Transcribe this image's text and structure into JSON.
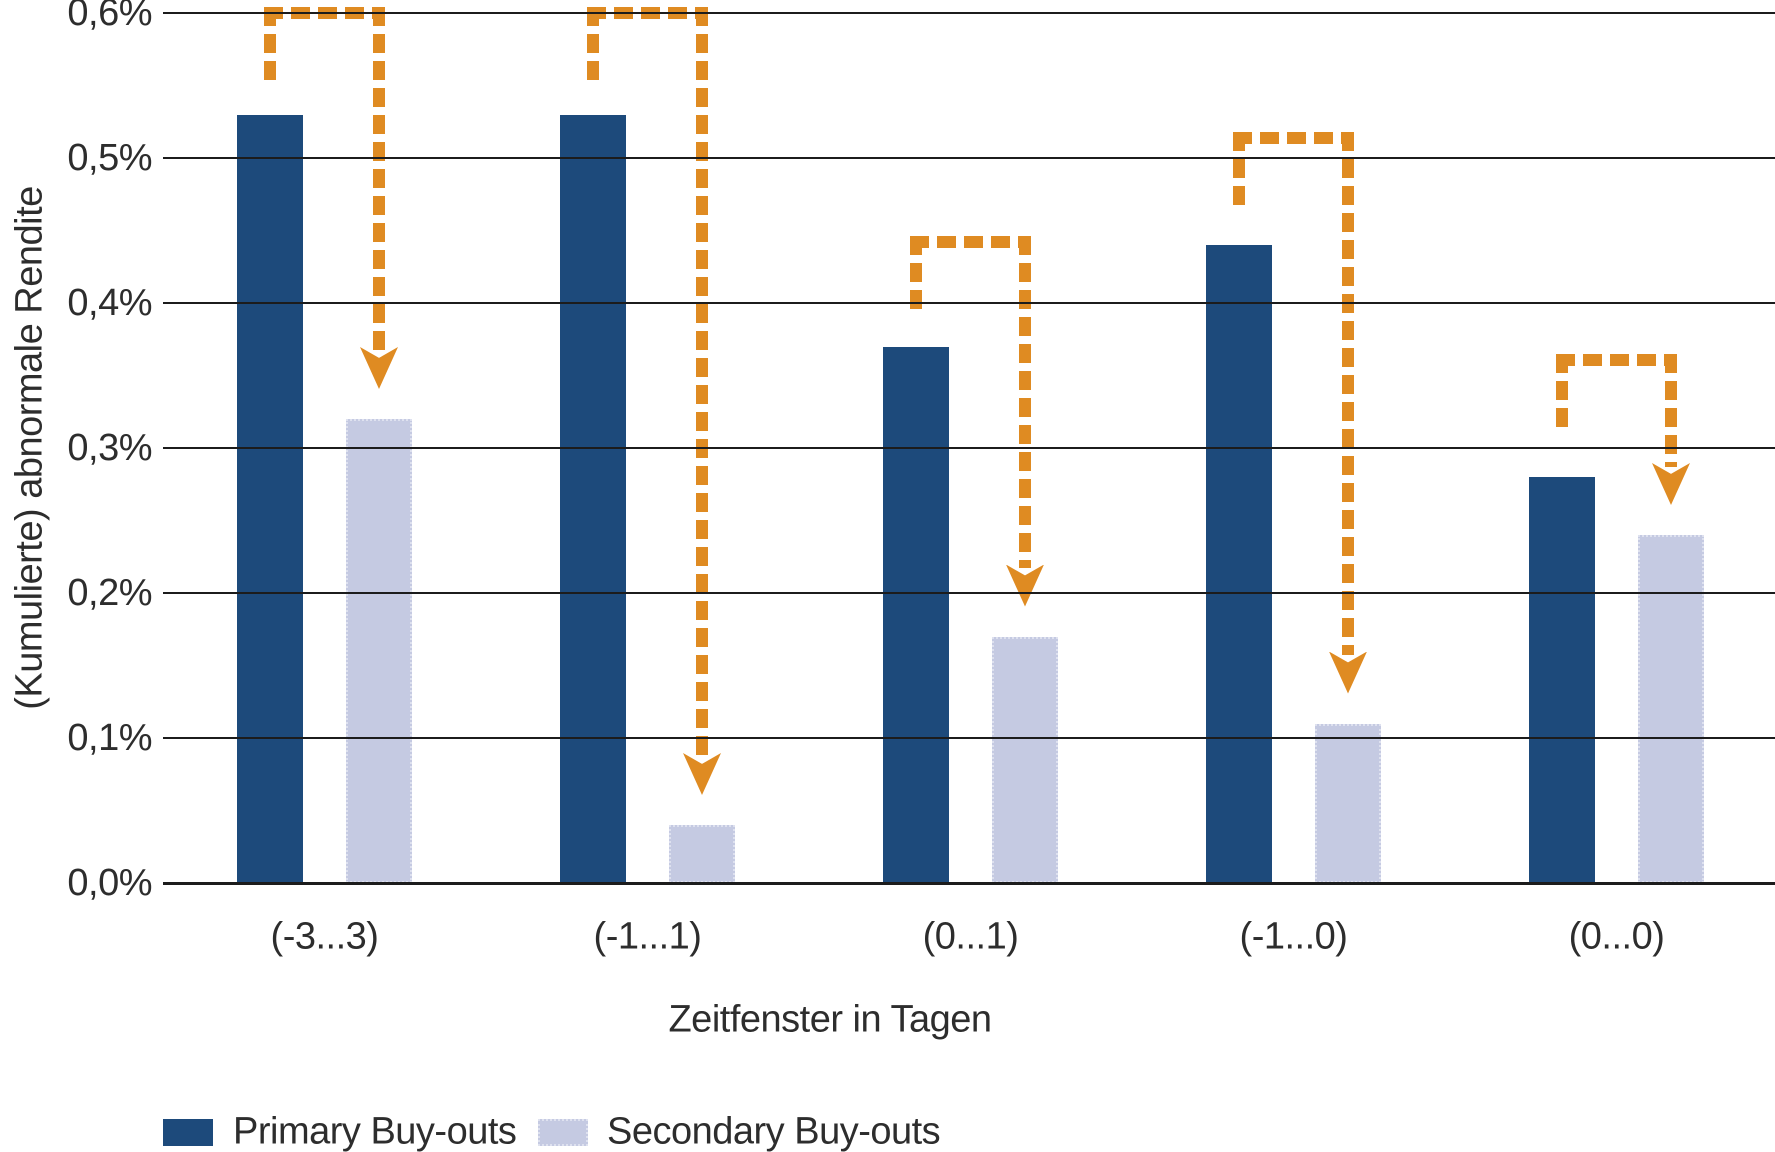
{
  "chart_data": {
    "type": "bar",
    "title": "",
    "xlabel": "Zeitfenster in Tagen",
    "ylabel": "(Kumulierte) abnormale Rendite",
    "categories": [
      "(-3...3)",
      "(-1...1)",
      "(0...1)",
      "(-1...0)",
      "(0...0)"
    ],
    "series": [
      {
        "name": "Primary Buy-outs",
        "color": "#1d4a7b",
        "values": [
          0.53,
          0.53,
          0.37,
          0.44,
          0.28
        ]
      },
      {
        "name": "Secondary Buy-outs",
        "color": "#c5cae2",
        "values": [
          0.32,
          0.04,
          0.17,
          0.11,
          0.24
        ]
      }
    ],
    "ylim": [
      0.0,
      0.6
    ],
    "ytick_step": 0.1,
    "ytick_labels_top_to_bottom": [
      "0,6%",
      "0,5%",
      "0,4%",
      "0,3%",
      "0,2%",
      "0,1%",
      "0,0%"
    ],
    "grid": true,
    "legend_position": "bottom-left",
    "annotations": {
      "description": "dashed orange bracket arrows from each Primary bar down to the paired Secondary bar",
      "color": "#df8b22",
      "bracket_top_values_pct": [
        0.6,
        0.6,
        0.442,
        0.514,
        0.361
      ]
    },
    "colors": {
      "grid": "#1c1c1c",
      "text": "#2d2d2d",
      "background": "#ffffff"
    }
  }
}
